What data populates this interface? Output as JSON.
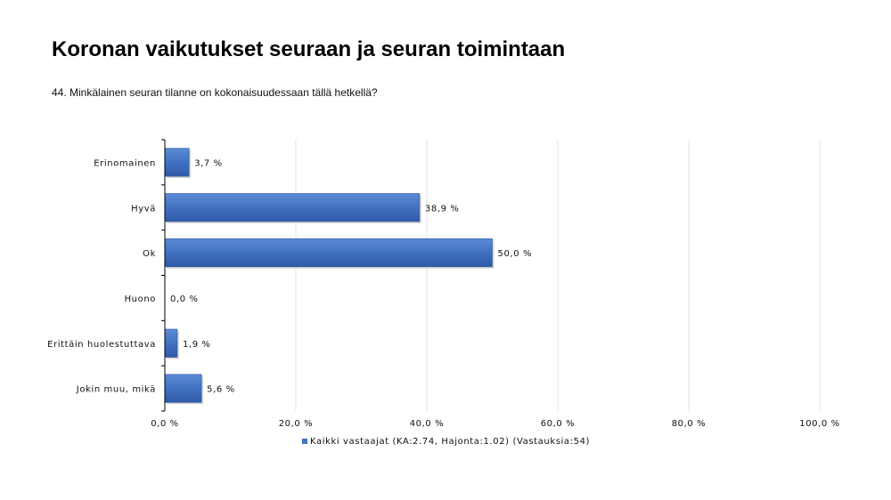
{
  "header": {
    "title": "Koronan vaikutukset seuraan ja seuran toimintaan",
    "subtitle": "44. Minkälainen seuran tilanne on kokonaisuudessaan tällä hetkellä?"
  },
  "chart_data": {
    "type": "bar",
    "orientation": "horizontal",
    "categories": [
      "Erinomainen",
      "Hyvä",
      "Ok",
      "Huono",
      "Erittäin huolestuttava",
      "Jokin muu, mikä"
    ],
    "series": [
      {
        "name": "Kaikki vastaajat (KA:2.74, Hajonta:1.02) (Vastauksia:54)",
        "values": [
          3.7,
          38.9,
          50.0,
          0.0,
          1.9,
          5.6
        ],
        "value_labels": [
          "3,7 %",
          "38,9 %",
          "50,0 %",
          "0,0 %",
          "1,9 %",
          "5,6 %"
        ]
      }
    ],
    "x_ticks": [
      0,
      20,
      40,
      60,
      80,
      100
    ],
    "x_tick_labels": [
      "0,0 %",
      "20,0 %",
      "40,0 %",
      "60,0 %",
      "80,0 %",
      "100,0 %"
    ],
    "xlim": [
      0,
      100
    ],
    "grid": true,
    "legend_position": "bottom",
    "colors": {
      "bar": "#4472c4",
      "bar_dark": "#2f5597",
      "grid": "#e6e6e6",
      "axis": "#000000"
    }
  }
}
